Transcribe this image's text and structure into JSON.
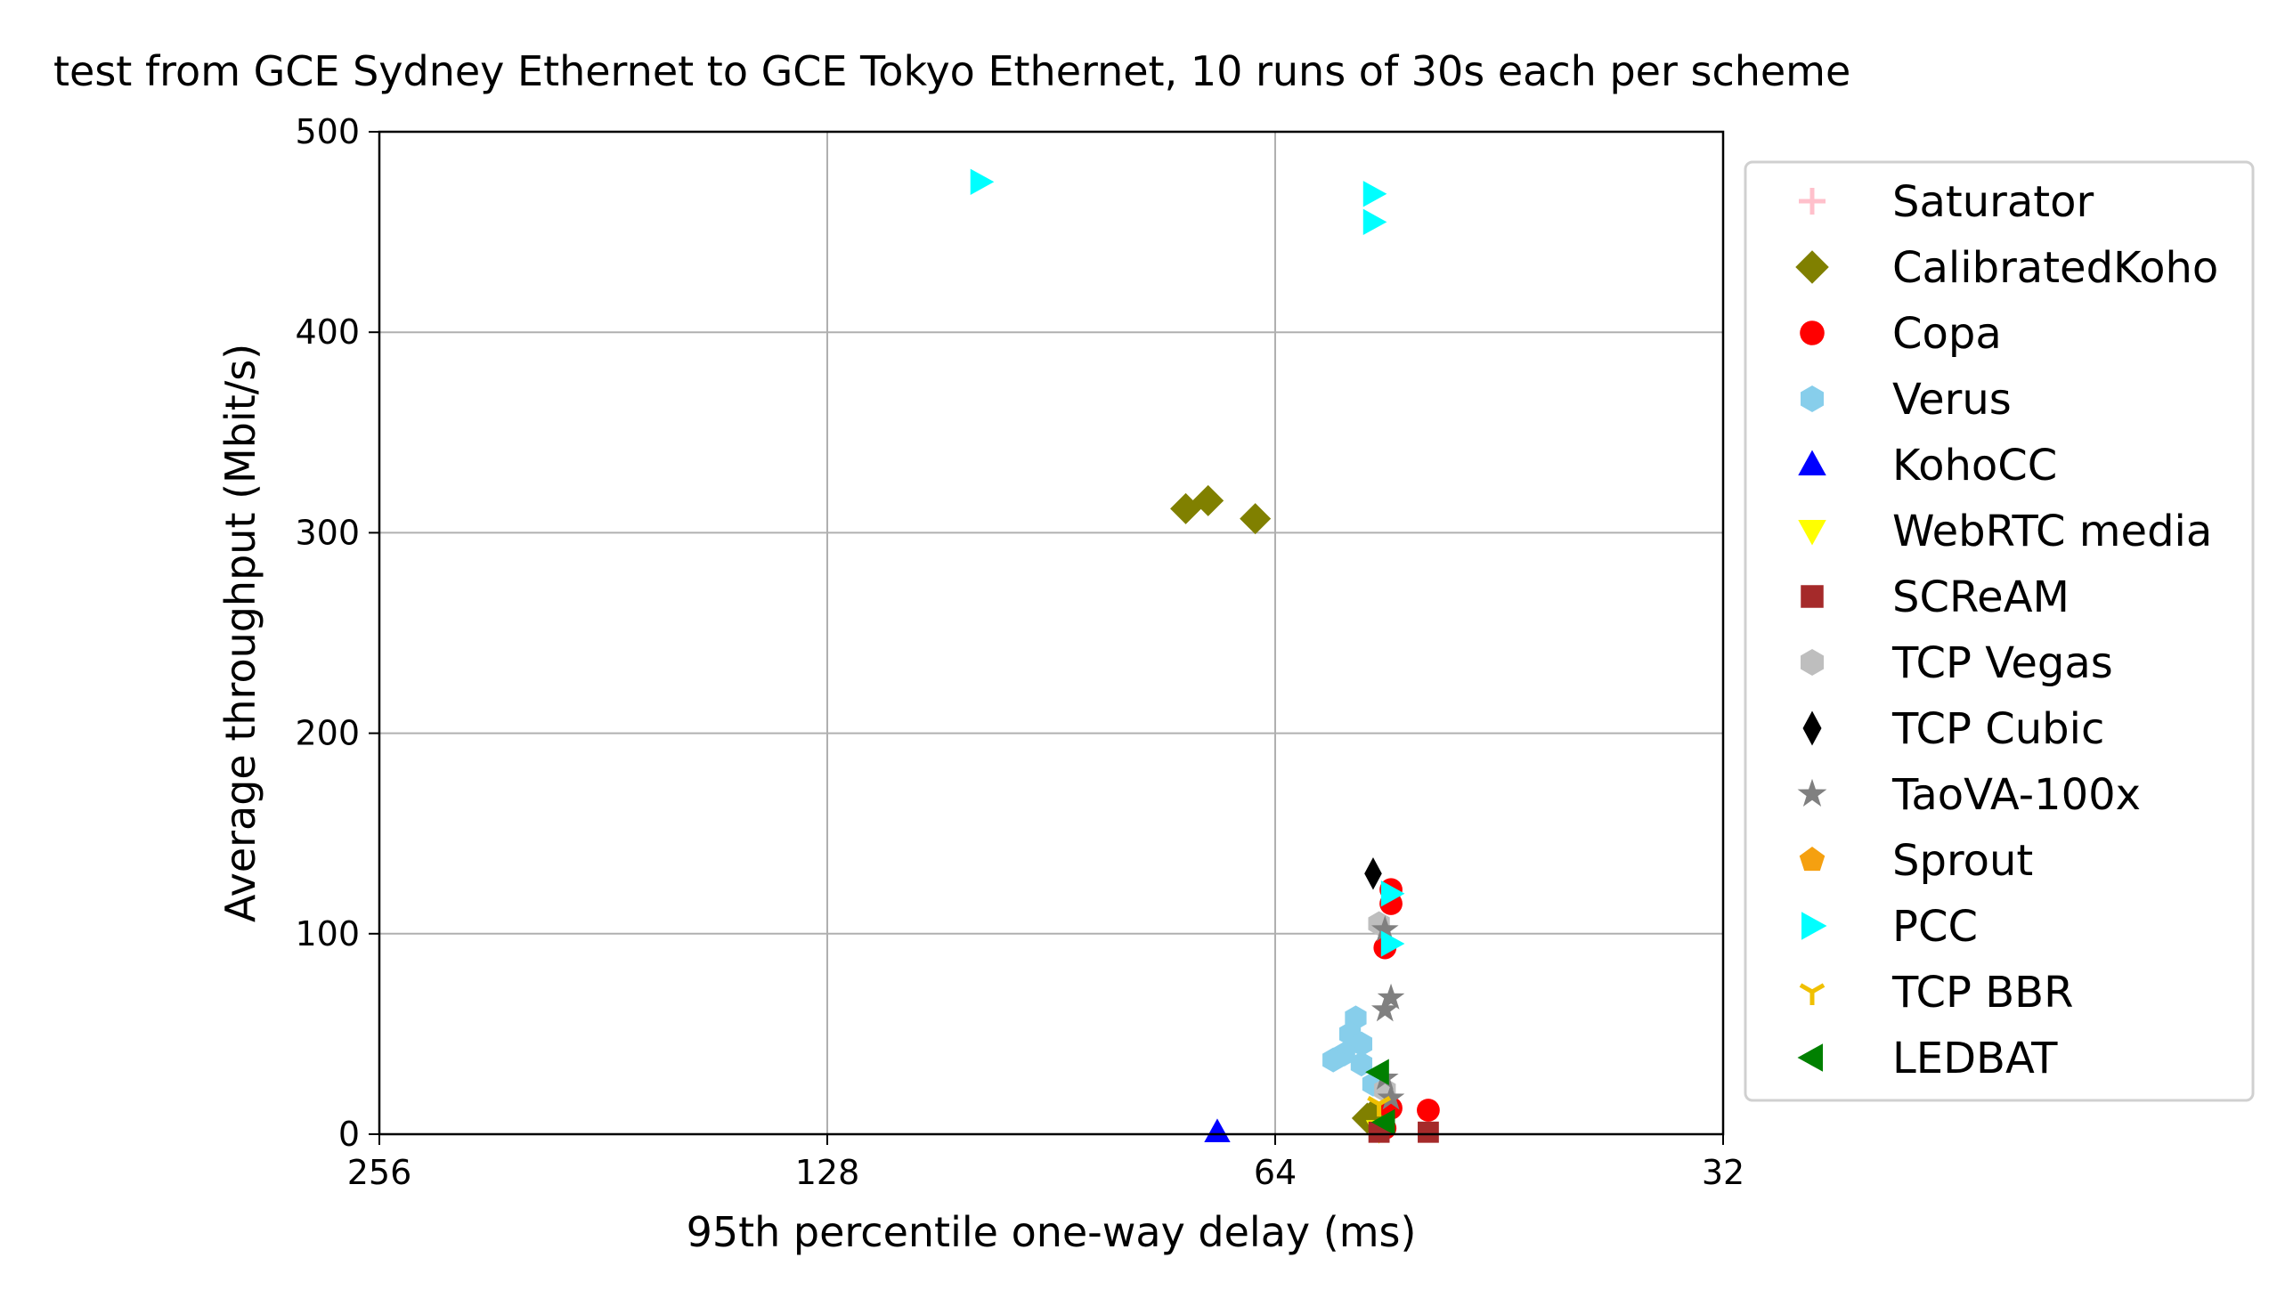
{
  "chart_data": {
    "type": "scatter",
    "title": "test from GCE Sydney Ethernet to GCE Tokyo Ethernet, 10 runs of 30s each per scheme",
    "xlabel": "95th percentile one-way delay (ms)",
    "ylabel": "Average throughput (Mbit/s)",
    "x_scale": "log2",
    "x_inverted": true,
    "xlim": [
      256,
      32
    ],
    "ylim": [
      0,
      500
    ],
    "xticks": [
      256,
      128,
      64,
      32
    ],
    "xtick_labels": [
      "256",
      "128",
      "64",
      "32"
    ],
    "yticks": [
      0,
      100,
      200,
      300,
      400,
      500
    ],
    "ytick_labels": [
      "0",
      "100",
      "200",
      "300",
      "400",
      "500"
    ],
    "grid": true,
    "legend_position": "outside-right",
    "series": [
      {
        "name": "Saturator",
        "marker": "plus",
        "color": "#ffc0cb",
        "points": []
      },
      {
        "name": "CalibratedKoho",
        "marker": "diamond",
        "color": "#808000",
        "points": [
          [
            73.5,
            312
          ],
          [
            71.0,
            316
          ],
          [
            66.0,
            307
          ],
          [
            55.5,
            8
          ],
          [
            55.0,
            10
          ]
        ]
      },
      {
        "name": "Copa",
        "marker": "circle",
        "color": "#ff0000",
        "points": [
          [
            53.5,
            122
          ],
          [
            53.5,
            115
          ],
          [
            54.0,
            93
          ],
          [
            53.5,
            13
          ],
          [
            50.5,
            12
          ],
          [
            54.0,
            3
          ]
        ]
      },
      {
        "name": "Verus",
        "marker": "hexagon",
        "color": "#87ceeb",
        "points": [
          [
            56.5,
            58
          ],
          [
            57.0,
            50
          ],
          [
            56.0,
            45
          ],
          [
            57.5,
            40
          ],
          [
            58.5,
            37
          ],
          [
            55.0,
            25
          ],
          [
            56.0,
            35
          ]
        ]
      },
      {
        "name": "KohoCC",
        "marker": "triangle-up",
        "color": "#0000ff",
        "points": [
          [
            70.0,
            1
          ]
        ]
      },
      {
        "name": "WebRTC media",
        "marker": "triangle-down",
        "color": "#ffff00",
        "points": [
          [
            54.5,
            2
          ]
        ]
      },
      {
        "name": "SCReAM",
        "marker": "square",
        "color": "#a52a2a",
        "points": [
          [
            54.5,
            1
          ],
          [
            50.5,
            1
          ]
        ]
      },
      {
        "name": "TCP Vegas",
        "marker": "hexagon",
        "color": "#bebebe",
        "points": [
          [
            54.5,
            105
          ],
          [
            54.0,
            22
          ]
        ]
      },
      {
        "name": "TCP Cubic",
        "marker": "thin-diamond",
        "color": "#000000",
        "points": [
          [
            55.0,
            130
          ]
        ]
      },
      {
        "name": "TaoVA-100x",
        "marker": "star",
        "color": "#808080",
        "points": [
          [
            54.0,
            102
          ],
          [
            53.5,
            68
          ],
          [
            54.0,
            62
          ],
          [
            54.0,
            28
          ],
          [
            53.5,
            18
          ]
        ]
      },
      {
        "name": "Sprout",
        "marker": "pentagon",
        "color": "#f5a010",
        "points": []
      },
      {
        "name": "PCC",
        "marker": "triangle-right",
        "color": "#00ffff",
        "points": [
          [
            101.0,
            475
          ],
          [
            55.0,
            469
          ],
          [
            55.0,
            455
          ],
          [
            53.5,
            120
          ],
          [
            53.5,
            95
          ]
        ]
      },
      {
        "name": "TCP BBR",
        "marker": "tri-down",
        "color": "#f0c000",
        "points": [
          [
            54.5,
            15
          ]
        ]
      },
      {
        "name": "LEDBAT",
        "marker": "triangle-left",
        "color": "#008000",
        "points": [
          [
            54.5,
            31
          ],
          [
            54.0,
            6
          ]
        ]
      }
    ]
  }
}
